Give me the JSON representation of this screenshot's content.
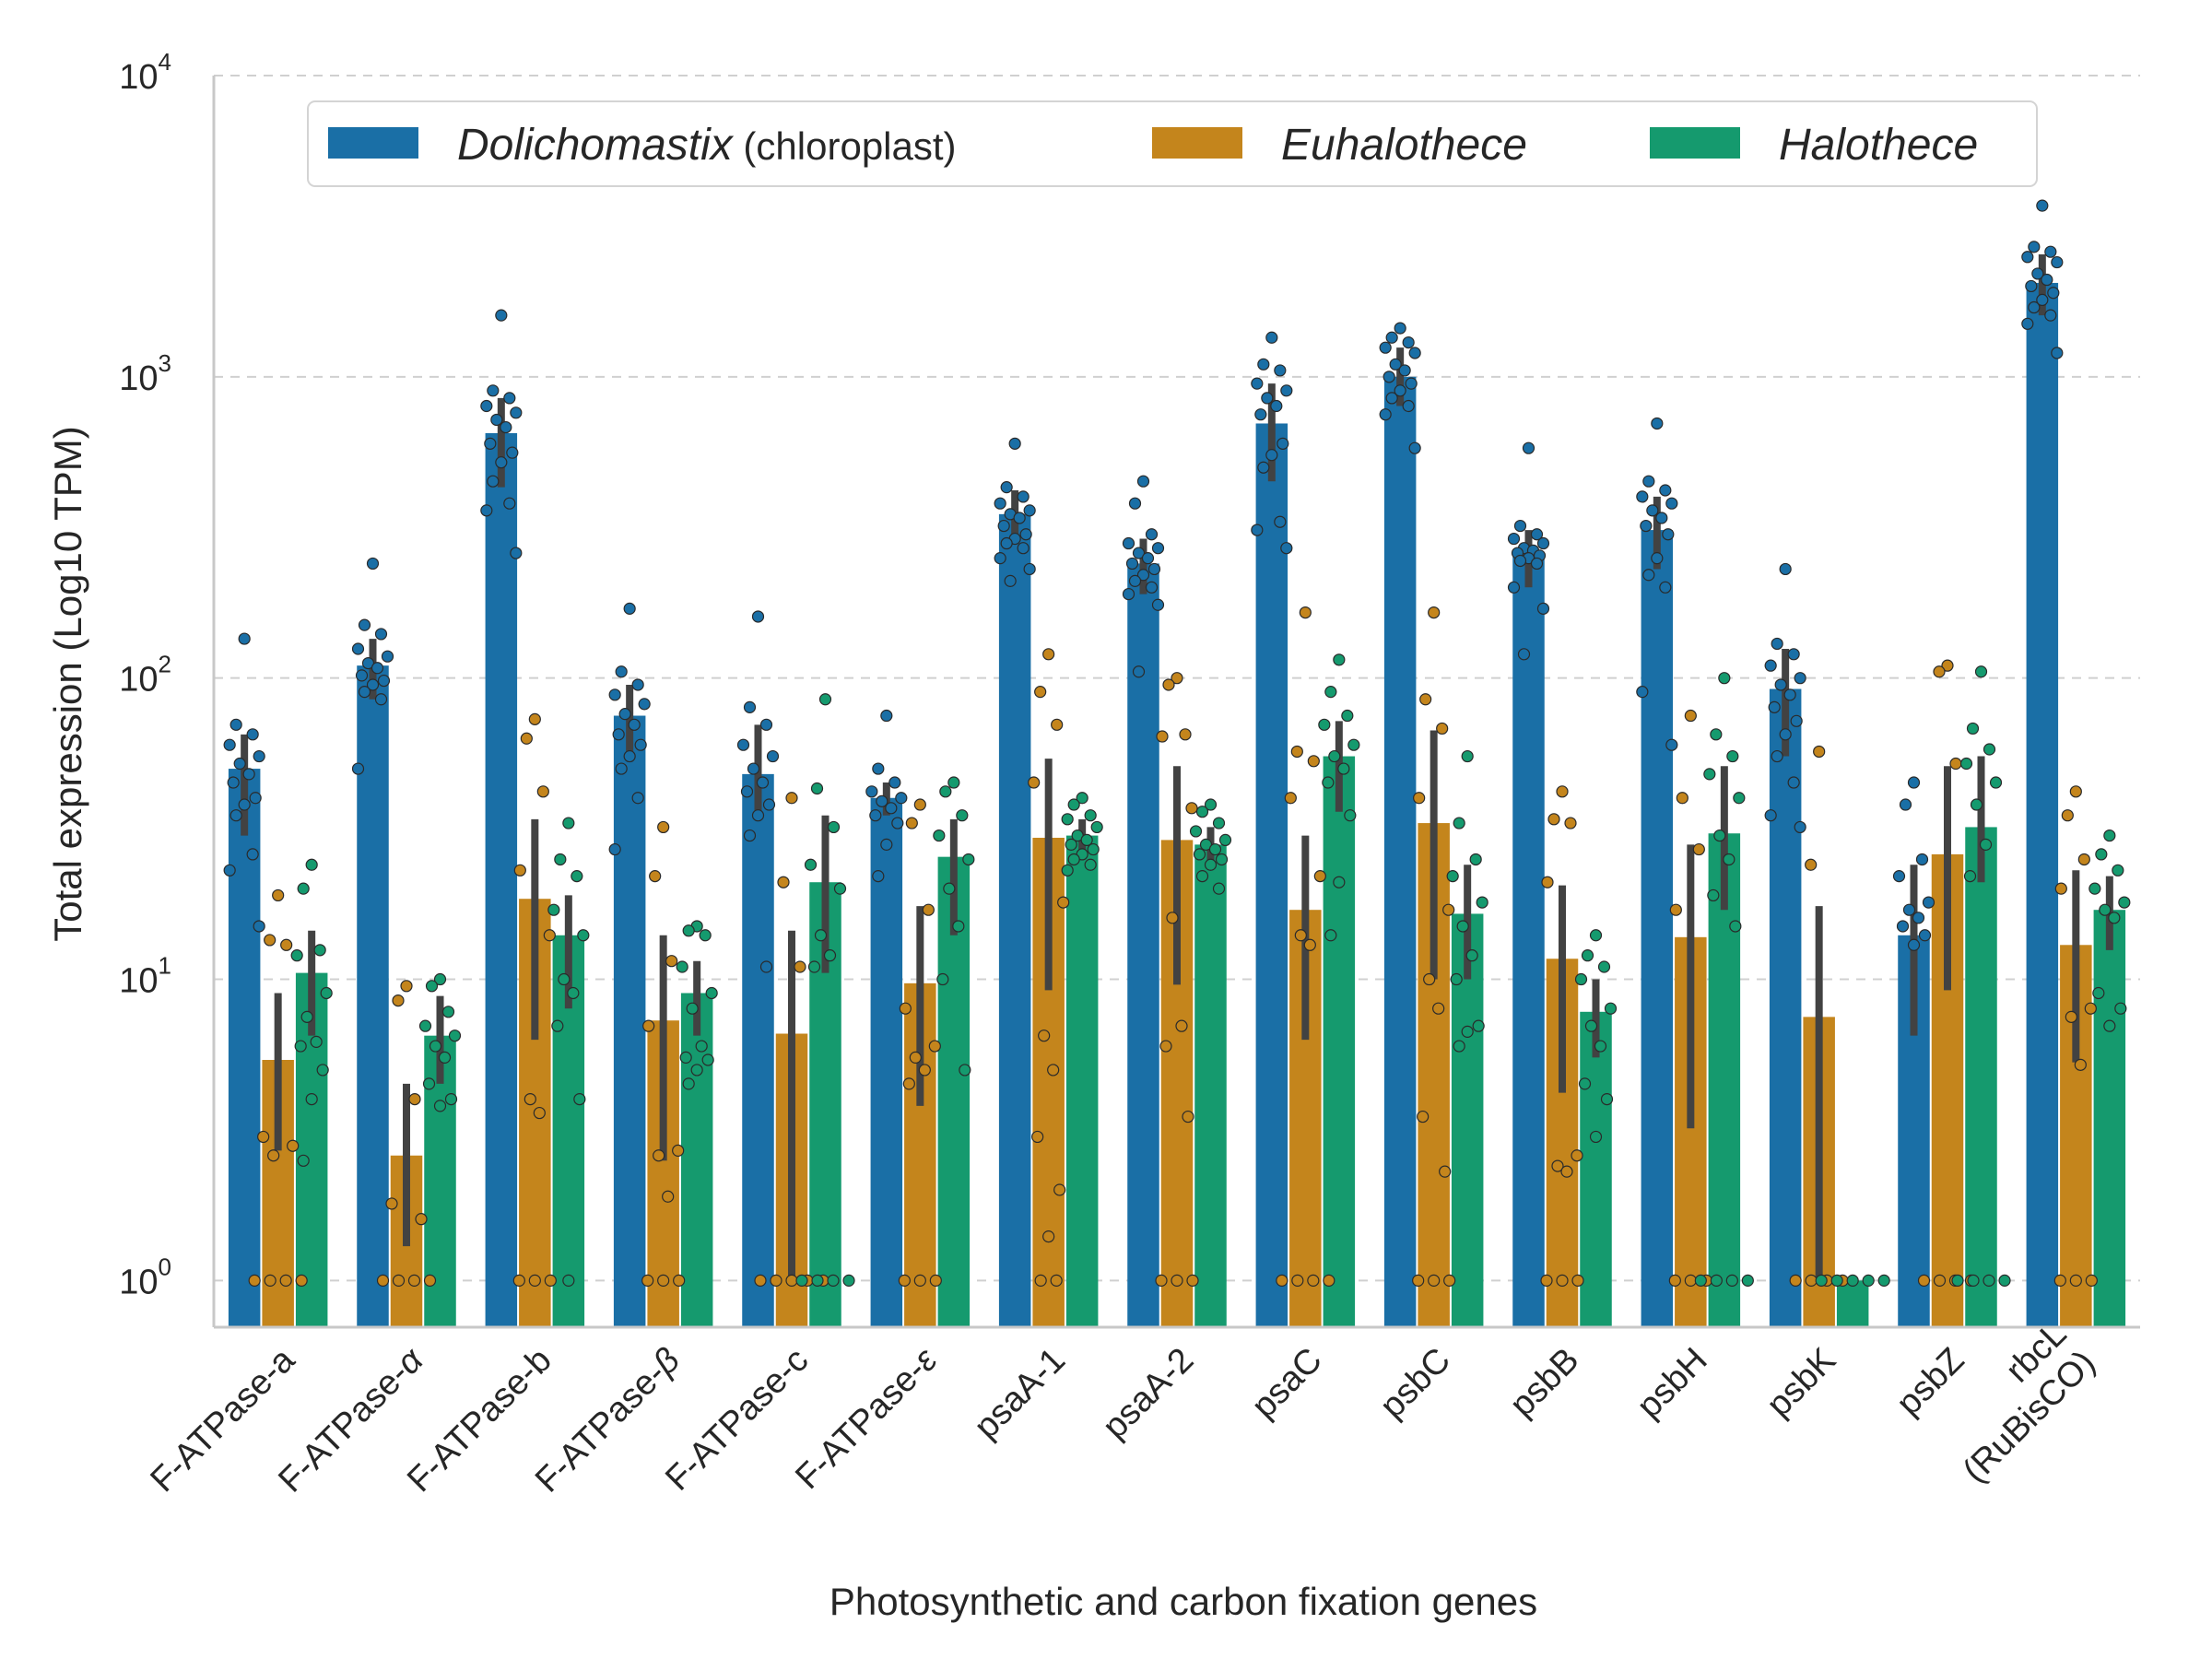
{
  "chart_data": {
    "type": "bar",
    "title": "",
    "xlabel": "Photosynthetic and carbon fixation genes",
    "ylabel": "Total expression (Log10 TPM)",
    "yscale": "log",
    "ylim": [
      0.7,
      10000
    ],
    "yticks": [
      {
        "value": 1,
        "base": "10",
        "exp": "0"
      },
      {
        "value": 10,
        "base": "10",
        "exp": "1"
      },
      {
        "value": 100,
        "base": "10",
        "exp": "2"
      },
      {
        "value": 1000,
        "base": "10",
        "exp": "3"
      },
      {
        "value": 10000,
        "base": "10",
        "exp": "4"
      }
    ],
    "grid": "horizontal dashed",
    "legend_placement": "top-center",
    "categories": [
      {
        "label": "F-ATPase-a"
      },
      {
        "label": "F-ATPase-",
        "greek": "α"
      },
      {
        "label": "F-ATPase-b"
      },
      {
        "label": "F-ATPase-",
        "greek": "β"
      },
      {
        "label": "F-ATPase-c"
      },
      {
        "label": "F-ATPase-",
        "greek": "ε"
      },
      {
        "label": "psaA-1"
      },
      {
        "label": "psaA-2"
      },
      {
        "label": "psaC"
      },
      {
        "label": "psbC"
      },
      {
        "label": "psbB"
      },
      {
        "label": "psbH"
      },
      {
        "label": "psbK"
      },
      {
        "label": "psbZ"
      },
      {
        "label": "rbcL",
        "label2": "(RuBisCO)"
      }
    ],
    "series": [
      {
        "name_italic": "Dolichomastix",
        "name_suffix": " (chloroplast)",
        "color": "#1a6fa6",
        "values": [
          50,
          110,
          650,
          75,
          48,
          40,
          350,
          240,
          700,
          1000,
          260,
          310,
          92,
          14,
          2050
        ],
        "ci": [
          [
            30,
            65
          ],
          [
            85,
            135
          ],
          [
            430,
            850
          ],
          [
            55,
            95
          ],
          [
            35,
            70
          ],
          [
            35,
            45
          ],
          [
            280,
            420
          ],
          [
            190,
            290
          ],
          [
            450,
            950
          ],
          [
            800,
            1250
          ],
          [
            200,
            310
          ],
          [
            230,
            400
          ],
          [
            55,
            125
          ],
          [
            6.5,
            24
          ],
          [
            1600,
            2550
          ]
        ],
        "points": [
          [
            135,
            70,
            65,
            60,
            55,
            52,
            48,
            45,
            40,
            38,
            35,
            26,
            23,
            15
          ],
          [
            240,
            150,
            140,
            125,
            118,
            112,
            108,
            102,
            98,
            95,
            90,
            85,
            50
          ],
          [
            1600,
            900,
            850,
            800,
            760,
            720,
            680,
            600,
            560,
            520,
            450,
            380,
            360,
            260
          ],
          [
            170,
            105,
            95,
            88,
            82,
            76,
            70,
            65,
            60,
            55,
            50,
            40,
            27
          ],
          [
            160,
            80,
            70,
            60,
            55,
            50,
            45,
            42,
            38,
            35,
            30,
            11
          ],
          [
            75,
            50,
            45,
            42,
            40,
            39,
            37,
            35,
            33,
            28,
            22
          ],
          [
            600,
            430,
            400,
            380,
            360,
            350,
            340,
            320,
            300,
            290,
            280,
            270,
            250,
            230,
            210
          ],
          [
            450,
            380,
            300,
            280,
            270,
            260,
            250,
            240,
            230,
            220,
            210,
            200,
            190,
            175,
            105
          ],
          [
            1350,
            1100,
            1050,
            950,
            900,
            850,
            800,
            750,
            600,
            550,
            500,
            330,
            310,
            270
          ],
          [
            1450,
            1350,
            1300,
            1250,
            1200,
            1100,
            1050,
            1000,
            950,
            900,
            850,
            800,
            750,
            580
          ],
          [
            580,
            320,
            300,
            290,
            280,
            270,
            265,
            260,
            255,
            250,
            245,
            240,
            200,
            170,
            120
          ],
          [
            700,
            450,
            420,
            400,
            380,
            360,
            340,
            320,
            300,
            250,
            220,
            200,
            90,
            60
          ],
          [
            230,
            130,
            120,
            110,
            100,
            95,
            88,
            80,
            72,
            65,
            55,
            45,
            35,
            32
          ],
          [
            45,
            38,
            25,
            22,
            18,
            17,
            16,
            15,
            14,
            13
          ],
          [
            3700,
            2700,
            2600,
            2500,
            2400,
            2200,
            2100,
            2000,
            1900,
            1800,
            1700,
            1600,
            1500,
            1200
          ]
        ]
      },
      {
        "name_italic": "Euhalothece",
        "name_suffix": "",
        "color": "#c4851c",
        "values": [
          5.4,
          2.6,
          18.5,
          7.3,
          6.6,
          9.7,
          29.5,
          29,
          17,
          33,
          11.7,
          13.8,
          7.5,
          26,
          13
        ],
        "ci": [
          [
            2.7,
            9
          ],
          [
            1.3,
            4.5
          ],
          [
            6.3,
            34
          ],
          [
            2.5,
            14
          ],
          [
            1,
            14.5
          ],
          [
            3.8,
            17.5
          ],
          [
            9.2,
            54
          ],
          [
            9.6,
            51
          ],
          [
            6.3,
            30
          ],
          [
            10,
            67
          ],
          [
            4.2,
            20.5
          ],
          [
            3.2,
            28
          ],
          [
            1,
            17.5
          ],
          [
            9.2,
            51
          ],
          [
            5.3,
            23
          ]
        ],
        "points": [
          [
            19,
            13.5,
            13,
            3,
            2.8,
            2.6,
            1,
            1,
            1,
            1
          ],
          [
            9.5,
            8.5,
            4,
            1.8,
            1.6,
            1,
            1,
            1,
            1
          ],
          [
            73,
            63,
            42,
            23,
            14,
            4,
            3.6,
            1,
            1,
            1
          ],
          [
            32,
            22,
            11.5,
            7,
            2.7,
            2.6,
            1.9,
            1,
            1,
            1
          ],
          [
            40,
            21,
            11,
            1,
            1,
            1,
            1,
            1
          ],
          [
            38,
            33,
            17,
            8,
            6,
            5.5,
            5,
            4.5,
            1,
            1,
            1
          ],
          [
            120,
            90,
            70,
            45,
            18,
            6.5,
            5,
            3,
            2,
            1.4,
            1,
            1
          ],
          [
            100,
            95,
            65,
            64,
            37,
            16,
            7,
            6,
            3.5,
            1,
            1,
            1
          ],
          [
            165,
            57,
            53,
            40,
            22,
            14,
            13,
            1,
            1,
            1,
            1
          ],
          [
            165,
            85,
            68,
            40,
            17,
            10,
            8,
            3.5,
            2.3,
            1,
            1,
            1
          ],
          [
            42,
            34,
            33,
            21,
            2.6,
            2.4,
            2.3,
            1,
            1,
            1
          ],
          [
            75,
            40,
            27,
            17,
            1,
            1,
            1
          ],
          [
            57,
            24,
            1,
            1,
            1,
            1
          ],
          [
            110,
            105,
            52,
            1,
            1,
            1,
            1
          ],
          [
            42,
            35,
            25,
            20,
            8,
            7.5,
            5.2,
            1,
            1,
            1
          ]
        ]
      },
      {
        "name_italic": "Halothece",
        "name_suffix": "",
        "color": "#159a6e",
        "values": [
          10.5,
          6.5,
          14,
          9,
          21,
          25.5,
          30,
          28,
          55,
          16.5,
          7.8,
          30.5,
          1,
          32,
          17
        ],
        "ci": [
          [
            6.5,
            14.5
          ],
          [
            4.5,
            8.8
          ],
          [
            8,
            19
          ],
          [
            6.5,
            11.5
          ],
          [
            10.5,
            35
          ],
          [
            14,
            34
          ],
          [
            26,
            34
          ],
          [
            24,
            32
          ],
          [
            36,
            72
          ],
          [
            10,
            24
          ],
          [
            5.5,
            10
          ],
          [
            17,
            51
          ],
          [
            1,
            1
          ],
          [
            21,
            55
          ],
          [
            12.5,
            22
          ]
        ],
        "points": [
          [
            24,
            20,
            12.5,
            12,
            9,
            7.5,
            6.2,
            6,
            5,
            4,
            2.5
          ],
          [
            10,
            9.5,
            7.8,
            7,
            6.5,
            6,
            5.5,
            4.5,
            4,
            3.8
          ],
          [
            33,
            25,
            22,
            17,
            14,
            10,
            9,
            7,
            4,
            1
          ],
          [
            15,
            14.5,
            14,
            11,
            9,
            8,
            6,
            5.5,
            5.4,
            5,
            4.5
          ],
          [
            85,
            43,
            32,
            24,
            20,
            14,
            12,
            11,
            1,
            1,
            1,
            1
          ],
          [
            45,
            42,
            35,
            30,
            25,
            20,
            15,
            10,
            5
          ],
          [
            40,
            38,
            35,
            34,
            32,
            30,
            29,
            28,
            27,
            26,
            25,
            24,
            23
          ],
          [
            38,
            36,
            33,
            31,
            29,
            28,
            27,
            26,
            25,
            24,
            22,
            20
          ],
          [
            115,
            90,
            75,
            70,
            60,
            55,
            50,
            45,
            35,
            21,
            14
          ],
          [
            55,
            33,
            25,
            22,
            18,
            15,
            12,
            10,
            7,
            6.7,
            6
          ],
          [
            14,
            12,
            11,
            10,
            8,
            7,
            6,
            4.5,
            4,
            3
          ],
          [
            100,
            65,
            55,
            48,
            40,
            30,
            25,
            19,
            15,
            1,
            1,
            1,
            1
          ],
          [
            1,
            1,
            1,
            1,
            1
          ],
          [
            105,
            68,
            58,
            52,
            45,
            38,
            28,
            22,
            1,
            1,
            1,
            1
          ],
          [
            30,
            26,
            23,
            20,
            18,
            17,
            16,
            9,
            8,
            7
          ]
        ]
      }
    ]
  }
}
